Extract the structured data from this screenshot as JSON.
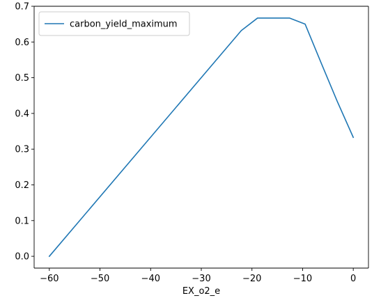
{
  "chart_data": {
    "type": "line",
    "title": "",
    "xlabel": "EX_o2_e",
    "ylabel": "",
    "xlim": [
      -63,
      3
    ],
    "ylim": [
      -0.033,
      0.7
    ],
    "xticks": [
      -60,
      -50,
      -40,
      -30,
      -20,
      -10,
      0
    ],
    "xtick_labels": [
      "−60",
      "−50",
      "−40",
      "−30",
      "−20",
      "−10",
      "0"
    ],
    "yticks": [
      0.0,
      0.1,
      0.2,
      0.3,
      0.4,
      0.5,
      0.6,
      0.7
    ],
    "ytick_labels": [
      "0.0",
      "0.1",
      "0.2",
      "0.3",
      "0.4",
      "0.5",
      "0.6",
      "0.7"
    ],
    "grid": false,
    "legend_position": "top-left",
    "series": [
      {
        "name": "carbon_yield_maximum",
        "color": "#1f77b4",
        "x": [
          -60,
          -22.1,
          -18.9,
          -15.8,
          -12.6,
          -9.5,
          -6.3,
          -3.2,
          0
        ],
        "y": [
          0.0,
          0.632,
          0.667,
          0.667,
          0.667,
          0.65,
          0.54,
          0.435,
          0.333
        ]
      }
    ]
  }
}
